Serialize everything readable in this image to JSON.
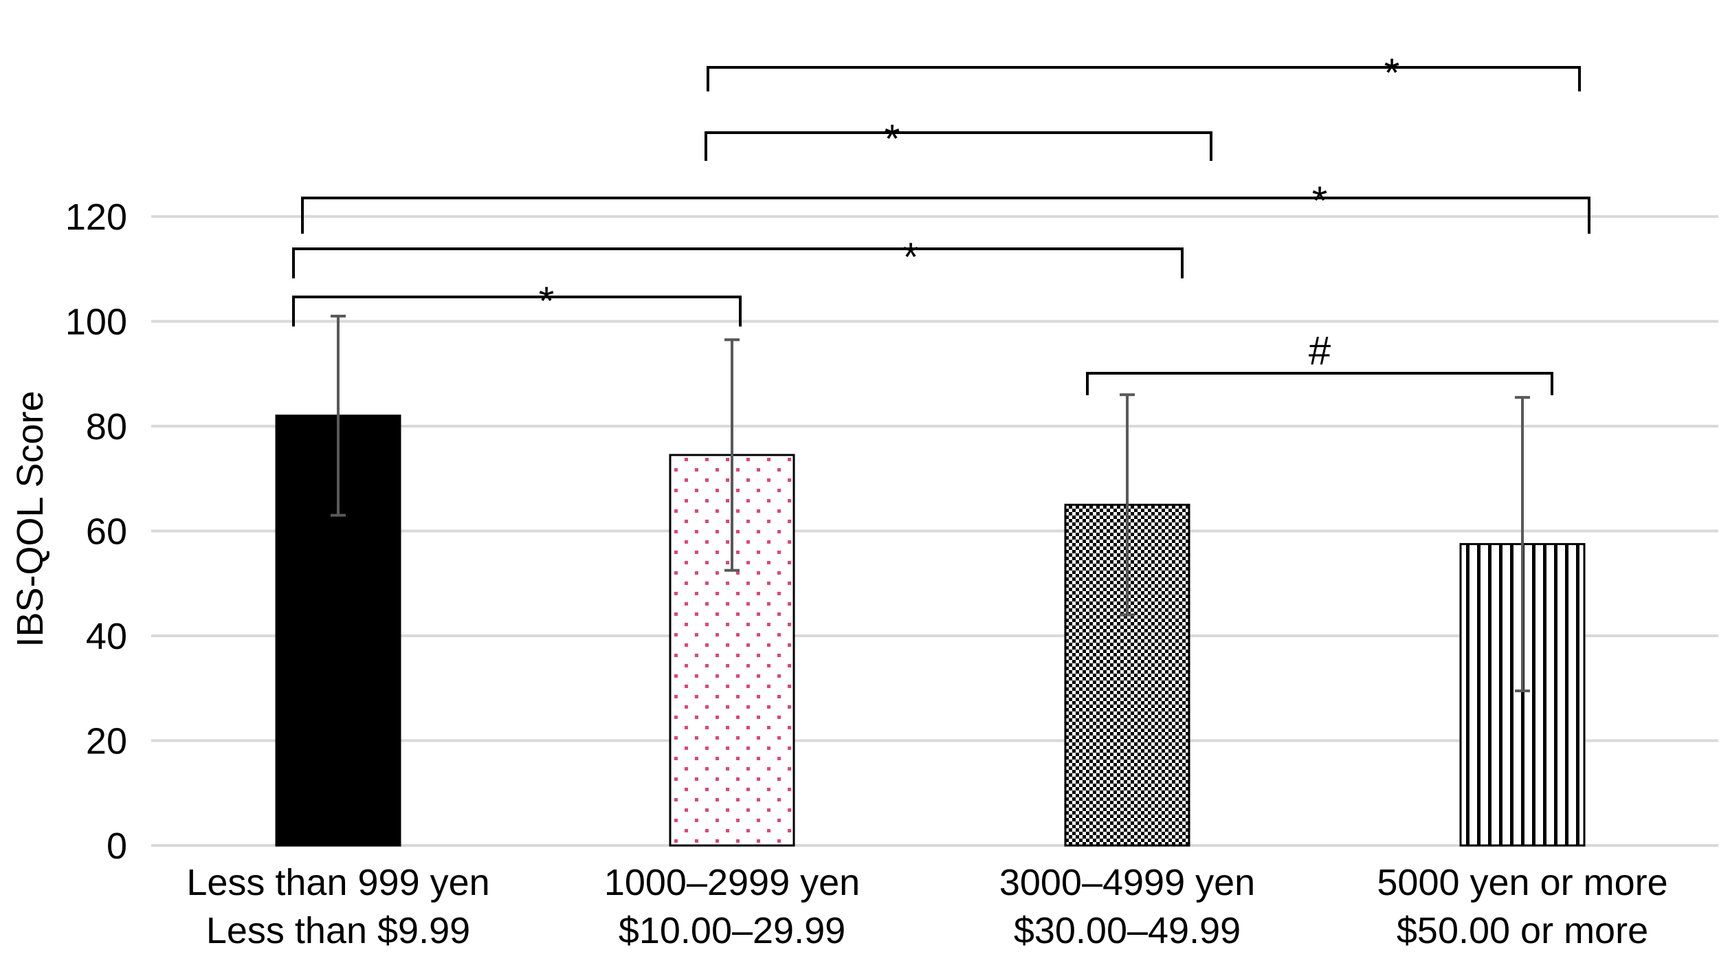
{
  "chart_data": {
    "type": "bar",
    "ylabel": "IBS-QOL Score",
    "xlabel": "",
    "ylim": [
      0,
      120
    ],
    "yticks": [
      0,
      20,
      40,
      60,
      80,
      100,
      120
    ],
    "grid": true,
    "categories": [
      {
        "line1": "Less than 999 yen",
        "line2": "Less than $9.99"
      },
      {
        "line1": "1000–2999 yen",
        "line2": "$10.00–29.99"
      },
      {
        "line1": "3000–4999 yen",
        "line2": "$30.00–49.99"
      },
      {
        "line1": "5000 yen or more",
        "line2": "$50.00 or more"
      }
    ],
    "values": [
      82,
      74.5,
      65,
      57.5
    ],
    "error_plus_minus": [
      19,
      22,
      21,
      28
    ],
    "bar_patterns": [
      "solid-black",
      "pink-dots",
      "checkerboard",
      "vertical-stripes"
    ],
    "colors": {
      "dots": "#e0457b",
      "bar_dark": "#000000",
      "error": "#595959",
      "grid": "#d9d9d9"
    },
    "significance": [
      {
        "from": 0,
        "to": 1,
        "label": "*"
      },
      {
        "from": 0,
        "to": 2,
        "label": "*"
      },
      {
        "from": 0,
        "to": 3,
        "label": "*"
      },
      {
        "from": 1,
        "to": 2,
        "label": "*"
      },
      {
        "from": 1,
        "to": 3,
        "label": "*"
      },
      {
        "from": 2,
        "to": 3,
        "label": "#"
      }
    ]
  }
}
